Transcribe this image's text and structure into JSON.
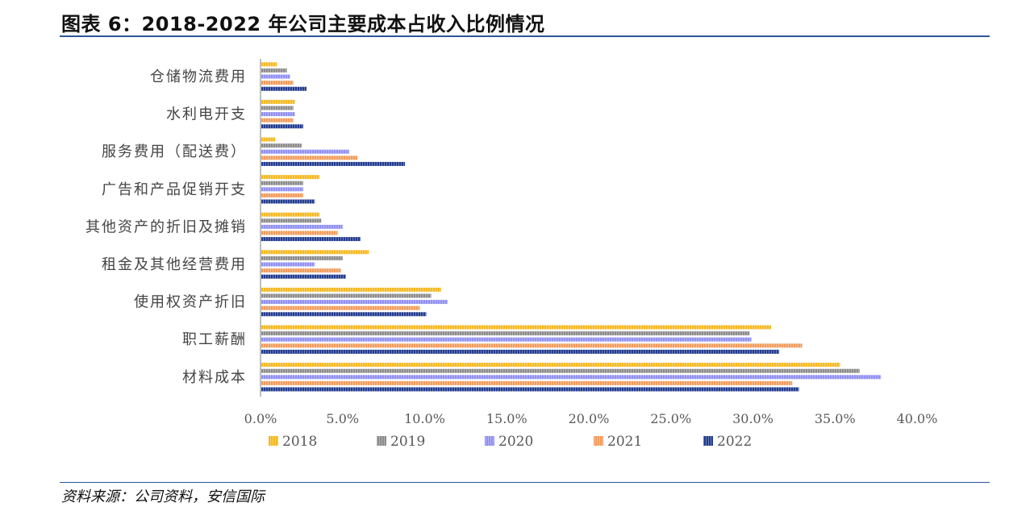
{
  "header": {
    "title": "图表 6：2018-2022 年公司主要成本占收入比例情况"
  },
  "footer": {
    "source": "资料来源：公司资料，安信国际"
  },
  "colors": {
    "2018": "#f5b921",
    "2019": "#8c8c8c",
    "2020": "#8f8ff2",
    "2021": "#f29c5c",
    "2022": "#223b8f"
  },
  "chart_data": {
    "type": "bar",
    "orientation": "horizontal",
    "categories": [
      "仓储物流费用",
      "水利电开支",
      "服务费用（配送费）",
      "广告和产品促销开支",
      "其他资产的折旧及摊销",
      "租金及其他经营费用",
      "使用权资产折旧",
      "职工薪酬",
      "材料成本"
    ],
    "series": [
      {
        "name": "2018",
        "values": [
          1.0,
          2.1,
          0.9,
          3.6,
          3.6,
          6.6,
          11.0,
          31.1,
          35.3
        ]
      },
      {
        "name": "2019",
        "values": [
          1.6,
          2.0,
          2.5,
          2.6,
          3.7,
          5.0,
          10.4,
          29.8,
          36.5
        ]
      },
      {
        "name": "2020",
        "values": [
          1.8,
          2.1,
          5.4,
          2.6,
          5.0,
          3.3,
          11.4,
          29.9,
          37.8
        ]
      },
      {
        "name": "2021",
        "values": [
          2.0,
          2.0,
          5.9,
          2.6,
          4.7,
          4.9,
          9.7,
          33.0,
          32.4
        ]
      },
      {
        "name": "2022",
        "values": [
          2.8,
          2.6,
          8.8,
          3.3,
          6.1,
          5.2,
          10.1,
          31.6,
          32.8
        ]
      }
    ],
    "xlim": [
      0,
      40
    ],
    "xticks": [
      "0.0%",
      "5.0%",
      "10.0%",
      "15.0%",
      "20.0%",
      "25.0%",
      "30.0%",
      "35.0%",
      "40.0%"
    ],
    "legend": {
      "position": "bottom",
      "entries": [
        "2018",
        "2019",
        "2020",
        "2021",
        "2022"
      ]
    },
    "grid": false
  }
}
